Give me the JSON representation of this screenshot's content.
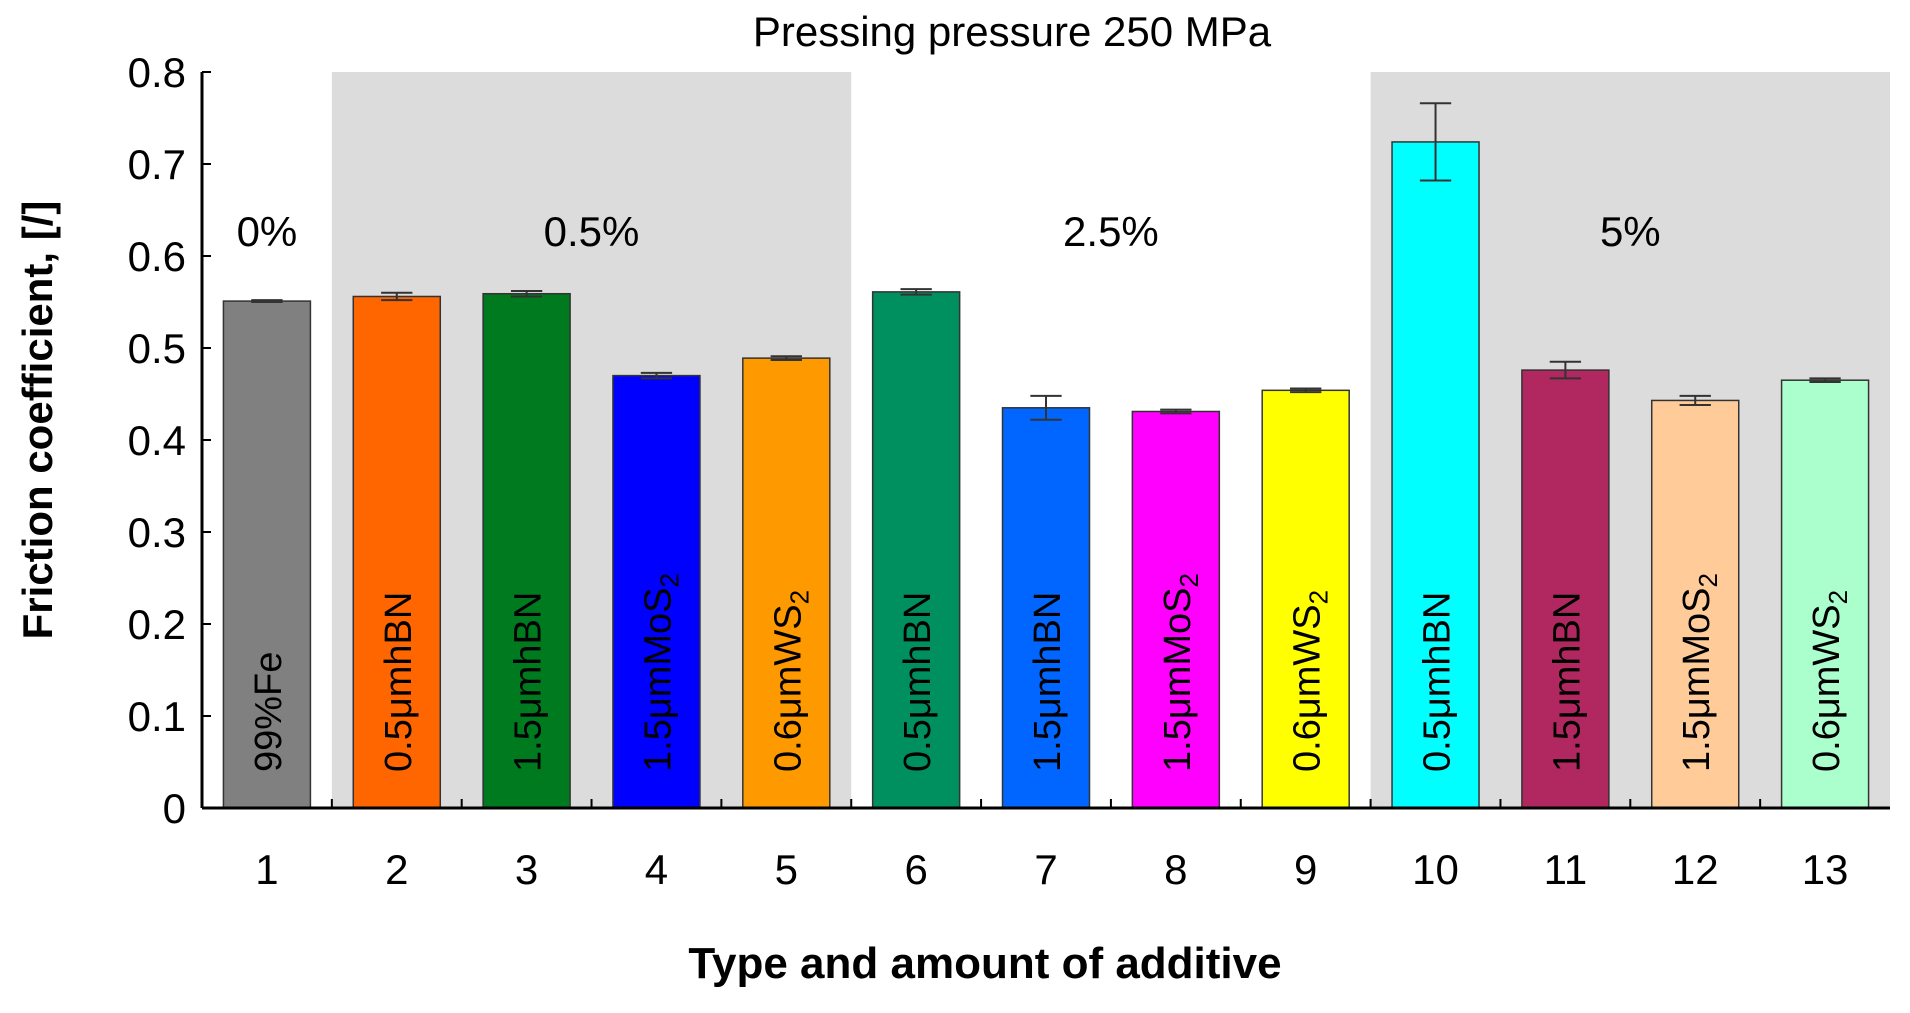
{
  "chart_data": {
    "type": "bar",
    "title": "Pressing pressure 250 MPa",
    "xlabel": "Type and amount of additive",
    "ylabel": "Friction coefficient, [/]",
    "ylim": [
      0,
      0.8
    ],
    "yticks": [
      "0",
      "0.1",
      "0.2",
      "0.3",
      "0.4",
      "0.5",
      "0.6",
      "0.7",
      "0.8"
    ],
    "categories": [
      "1",
      "2",
      "3",
      "4",
      "5",
      "6",
      "7",
      "8",
      "9",
      "10",
      "11",
      "12",
      "13"
    ],
    "values": [
      0.551,
      0.556,
      0.559,
      0.47,
      0.489,
      0.561,
      0.435,
      0.431,
      0.454,
      0.724,
      0.476,
      0.443,
      0.465
    ],
    "errors": [
      0.001,
      0.004,
      0.003,
      0.003,
      0.002,
      0.003,
      0.013,
      0.002,
      0.002,
      0.042,
      0.009,
      0.005,
      0.002
    ],
    "bar_labels": [
      {
        "main": "99%Fe",
        "sub": ""
      },
      {
        "main": "0.5μmhBN",
        "sub": ""
      },
      {
        "main": "1.5μmhBN",
        "sub": ""
      },
      {
        "main": "1.5μmMoS",
        "sub": "2"
      },
      {
        "main": "0.6μmWS",
        "sub": "2"
      },
      {
        "main": "0.5μmhBN",
        "sub": ""
      },
      {
        "main": "1.5μmhBN",
        "sub": ""
      },
      {
        "main": "1.5μmMoS",
        "sub": "2"
      },
      {
        "main": "0.6μmWS",
        "sub": "2"
      },
      {
        "main": "0.5μmhBN",
        "sub": ""
      },
      {
        "main": "1.5μmhBN",
        "sub": ""
      },
      {
        "main": "1.5μmMoS",
        "sub": "2"
      },
      {
        "main": "0.6μmWS",
        "sub": "2"
      }
    ],
    "colors": [
      "#808080",
      "#FF6600",
      "#007A1F",
      "#0000FF",
      "#FF9900",
      "#009060",
      "#0066FF",
      "#FF00FF",
      "#FFFF00",
      "#00FFFF",
      "#B0285F",
      "#FFCC99",
      "#AAFFCC"
    ],
    "groups": [
      {
        "label": "0%",
        "start": 1,
        "end": 1,
        "shaded": false
      },
      {
        "label": "0.5%",
        "start": 2,
        "end": 5,
        "shaded": true
      },
      {
        "label": "2.5%",
        "start": 6,
        "end": 9,
        "shaded": false
      },
      {
        "label": "5%",
        "start": 10,
        "end": 13,
        "shaded": true
      }
    ],
    "shade_color": "#DCDCDC"
  }
}
